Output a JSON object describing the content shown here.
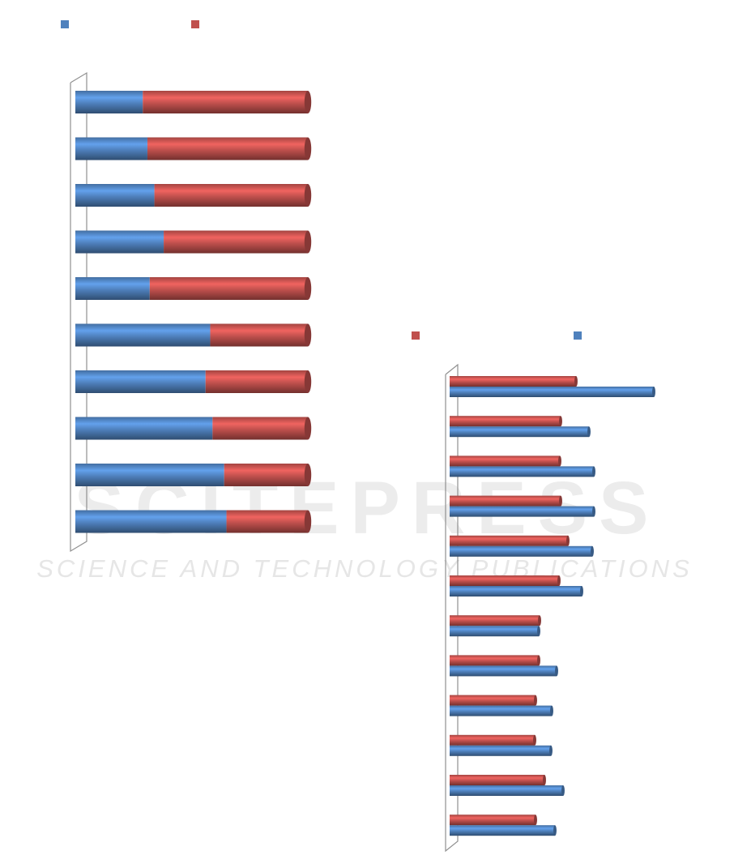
{
  "watermark": {
    "title": "SCITEPRESS",
    "subtitle": "SCIENCE AND TECHNOLOGY PUBLICATIONS"
  },
  "chart_data": [
    {
      "type": "bar",
      "orientation": "horizontal",
      "stacked": true,
      "categories": [
        null,
        null,
        null,
        null,
        null,
        null,
        null,
        null,
        null,
        null
      ],
      "series": [
        {
          "color": "#4f81bd",
          "values": [
            29,
            31,
            34,
            38,
            32,
            58,
            56,
            59,
            64,
            65
          ]
        },
        {
          "color": "#c0504d",
          "values": [
            71,
            69,
            66,
            62,
            68,
            42,
            44,
            41,
            36,
            35
          ]
        }
      ],
      "xlim": [
        0,
        100
      ]
    },
    {
      "type": "bar",
      "orientation": "horizontal",
      "stacked": false,
      "categories": [
        null,
        null,
        null,
        null,
        null,
        null,
        null,
        null,
        null,
        null,
        null,
        null
      ],
      "series": [
        {
          "color": "#c0504d",
          "values": [
            156,
            137,
            136,
            137,
            146,
            135,
            111,
            110,
            106,
            105,
            117,
            106
          ]
        },
        {
          "color": "#4f81bd",
          "values": [
            252,
            172,
            178,
            178,
            176,
            163,
            110,
            132,
            126,
            125,
            140,
            130
          ]
        }
      ],
      "xlim": [
        0,
        260
      ]
    }
  ]
}
